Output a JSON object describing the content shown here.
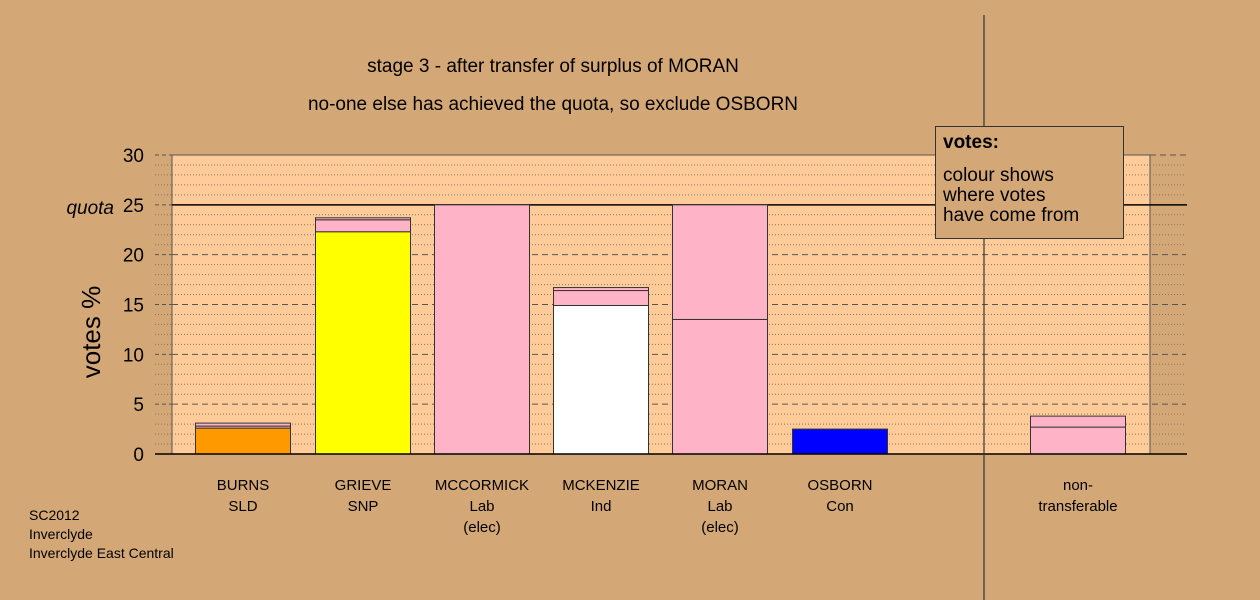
{
  "title_line1": "stage 3 - after transfer of surplus of MORAN",
  "title_line2": "no-one else has achieved the quota, so exclude OSBORN",
  "legend": {
    "title": "votes:",
    "lines": [
      "colour shows",
      "where votes",
      "have come from"
    ]
  },
  "footer": {
    "lines": [
      "SC2012",
      "Inverclyde",
      "Inverclyde East Central"
    ]
  },
  "colors": {
    "background": "#d4a876",
    "plot_area": "#ffcc99",
    "BURNS": "#ff9900",
    "GRIEVE": "#ffff00",
    "MCCORMICK": "#ffb3c6",
    "MCKENZIE": "#ffffff",
    "MORAN": "#ffb3c6",
    "OSBORN": "#0000ff",
    "transfer": "#ffb3c6"
  },
  "chart_data": {
    "type": "bar",
    "stacked": true,
    "ylabel": "votes %",
    "ylim": [
      0,
      30
    ],
    "yticks": [
      0,
      5,
      10,
      15,
      20,
      25,
      30
    ],
    "quota": 25,
    "quota_label": "quota",
    "grid": "dotted minor every 1, dashed major every 5",
    "categories": [
      {
        "key": "BURNS",
        "label": [
          "BURNS",
          "SLD"
        ]
      },
      {
        "key": "GRIEVE",
        "label": [
          "GRIEVE",
          "SNP"
        ]
      },
      {
        "key": "MCCORMICK",
        "label": [
          "MCCORMICK",
          "Lab",
          "(elec)"
        ]
      },
      {
        "key": "MCKENZIE",
        "label": [
          "MCKENZIE",
          "Ind"
        ]
      },
      {
        "key": "MORAN",
        "label": [
          "MORAN",
          "Lab",
          "(elec)"
        ]
      },
      {
        "key": "OSBORN",
        "label": [
          "OSBORN",
          "Con"
        ]
      },
      {
        "key": "NONTRANSFERABLE",
        "label": [
          "non-",
          "transferable"
        ]
      }
    ],
    "stacks": [
      [
        {
          "value": 2.6,
          "color": "#ff9900"
        },
        {
          "value": 0.2,
          "color": "#ffb3c6"
        },
        {
          "value": 0.3,
          "color": "#ffb3c6"
        }
      ],
      [
        {
          "value": 22.3,
          "color": "#ffff00"
        },
        {
          "value": 1.2,
          "color": "#ffb3c6"
        },
        {
          "value": 0.2,
          "color": "#ffb3c6"
        }
      ],
      [
        {
          "value": 25.0,
          "color": "#ffb3c6"
        }
      ],
      [
        {
          "value": 14.9,
          "color": "#ffffff"
        },
        {
          "value": 1.5,
          "color": "#ffb3c6"
        },
        {
          "value": 0.3,
          "color": "#ffb3c6"
        }
      ],
      [
        {
          "value": 13.5,
          "color": "#ffb3c6"
        },
        {
          "value": 11.5,
          "color": "#ffb3c6"
        }
      ],
      [
        {
          "value": 2.5,
          "color": "#0000ff"
        }
      ],
      [
        {
          "value": 2.7,
          "color": "#ffb3c6"
        },
        {
          "value": 1.1,
          "color": "#ffb3c6"
        }
      ]
    ]
  }
}
